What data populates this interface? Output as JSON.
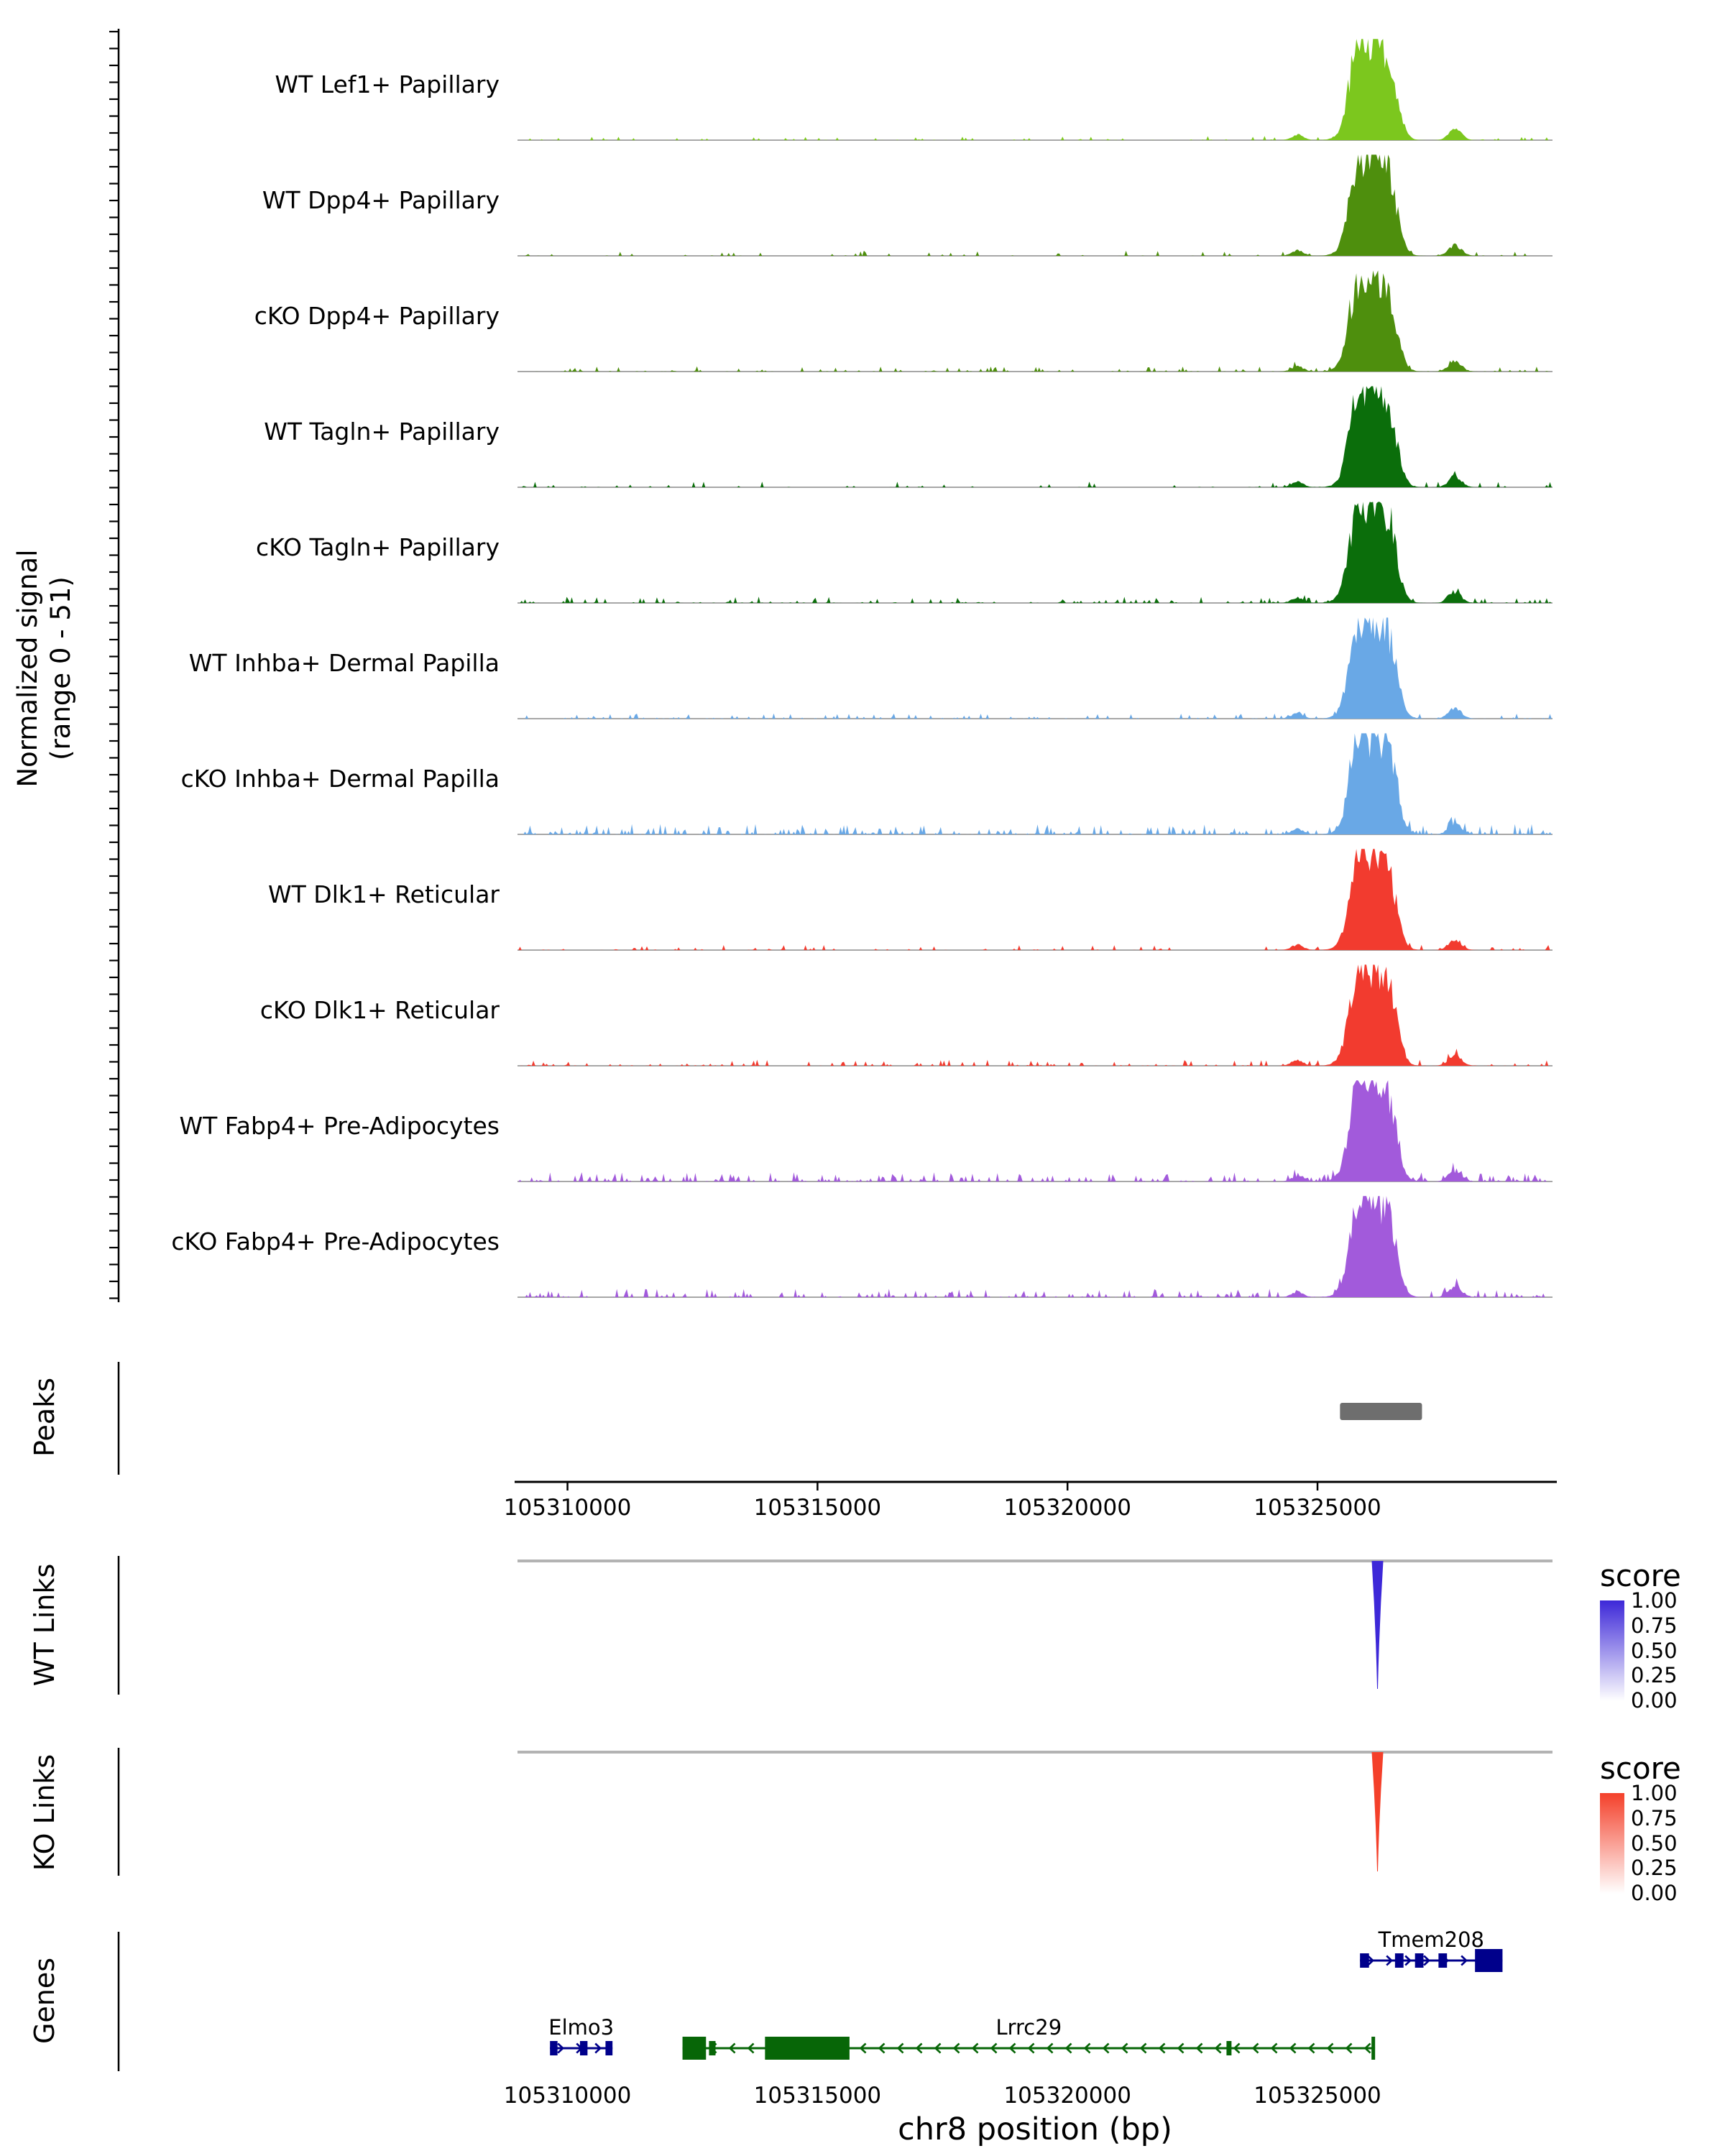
{
  "y_axis": {
    "label_line1": "Normalized signal",
    "label_line2": "(range 0 - 51)"
  },
  "sections": {
    "peaks_label": "Peaks",
    "wt_links_label": "WT Links",
    "ko_links_label": "KO Links",
    "genes_label": "Genes"
  },
  "x_axis": {
    "label": "chr8 position (bp)",
    "ticks": [
      105310000,
      105315000,
      105320000,
      105325000
    ],
    "tick_labels": [
      "105310000",
      "105315000",
      "105320000",
      "105325000"
    ]
  },
  "score_legend": {
    "title": "score",
    "tick_labels": [
      "1.00",
      "0.75",
      "0.50",
      "0.25",
      "0.00"
    ],
    "wt_color": "#3D28D8",
    "ko_color": "#F4402A"
  },
  "chart_data": {
    "type": "area",
    "description": "Genome coverage (accessibility) tracks with peaks, co-accessibility links and gene models at the Lrrc29/Tmem208 locus",
    "window": {
      "chrom": "chr8",
      "start": 105309000,
      "end": 105329700
    },
    "signal_range": [
      0,
      51
    ],
    "peaks_color": "#6E6E6E",
    "peak_profile": [
      {
        "center": 105326050,
        "sigma": 280,
        "height": 0.85
      },
      {
        "center": 105326450,
        "sigma": 160,
        "height": 0.45
      },
      {
        "center": 105325750,
        "sigma": 140,
        "height": 0.35
      },
      {
        "center": 105327750,
        "sigma": 130,
        "height": 0.1
      },
      {
        "center": 105324600,
        "sigma": 120,
        "height": 0.05
      }
    ],
    "tracks": [
      {
        "label": "WT Lef1+ Papillary",
        "color": "#7CC71E",
        "seed": 11,
        "noise_density": 0.1,
        "noise_amp": 0.04,
        "peak_height": 1.0
      },
      {
        "label": "WT Dpp4+ Papillary",
        "color": "#4E8F0D",
        "seed": 22,
        "noise_density": 0.12,
        "noise_amp": 0.05,
        "peak_height": 1.0
      },
      {
        "label": "cKO Dpp4+ Papillary",
        "color": "#4E8F0D",
        "seed": 33,
        "noise_density": 0.22,
        "noise_amp": 0.05,
        "peak_height": 0.95
      },
      {
        "label": "WT Tagln+ Papillary",
        "color": "#0B6E0B",
        "seed": 44,
        "noise_density": 0.12,
        "noise_amp": 0.06,
        "peak_height": 1.0
      },
      {
        "label": "cKO Tagln+ Papillary",
        "color": "#0B6E0B",
        "seed": 55,
        "noise_density": 0.3,
        "noise_amp": 0.06,
        "peak_height": 1.0
      },
      {
        "label": "WT Inhba+ Dermal Papilla",
        "color": "#69A8E6",
        "seed": 66,
        "noise_density": 0.22,
        "noise_amp": 0.05,
        "peak_height": 1.0
      },
      {
        "label": "cKO Inhba+ Dermal Papilla",
        "color": "#69A8E6",
        "seed": 77,
        "noise_density": 0.45,
        "noise_amp": 0.1,
        "peak_height": 1.0
      },
      {
        "label": "WT Dlk1+ Reticular",
        "color": "#F23B2F",
        "seed": 88,
        "noise_density": 0.15,
        "noise_amp": 0.05,
        "peak_height": 0.95
      },
      {
        "label": "cKO Dlk1+ Reticular",
        "color": "#F23B2F",
        "seed": 99,
        "noise_density": 0.25,
        "noise_amp": 0.06,
        "peak_height": 1.0
      },
      {
        "label": "WT Fabp4+ Pre-Adipocytes",
        "color": "#A25ADB",
        "seed": 110,
        "noise_density": 0.4,
        "noise_amp": 0.09,
        "peak_height": 1.0
      },
      {
        "label": "cKO Fabp4+ Pre-Adipocytes",
        "color": "#A25ADB",
        "seed": 121,
        "noise_density": 0.32,
        "noise_amp": 0.08,
        "peak_height": 1.0
      }
    ],
    "peak_regions": [
      {
        "start": 105325450,
        "end": 105327090
      }
    ],
    "links": {
      "wt": [
        {
          "anchor": 105326200,
          "score": 1.0
        }
      ],
      "ko": [
        {
          "anchor": 105326200,
          "score": 1.0
        }
      ]
    },
    "genes": [
      {
        "name": "Tmem208",
        "color": "#00008B",
        "strand": "+",
        "start": 105325850,
        "end": 105328700,
        "row": 0,
        "exons": [
          {
            "start": 105325850,
            "end": 105326030,
            "tall": false
          },
          {
            "start": 105326550,
            "end": 105326720,
            "tall": false
          },
          {
            "start": 105326950,
            "end": 105327120,
            "tall": false
          },
          {
            "start": 105327420,
            "end": 105327590,
            "tall": false
          },
          {
            "start": 105328150,
            "end": 105328700,
            "tall": true
          }
        ]
      },
      {
        "name": "Elmo3",
        "color": "#00008B",
        "strand": "+",
        "start": 105309650,
        "end": 105310900,
        "row": 1,
        "exons": [
          {
            "start": 105309650,
            "end": 105309800,
            "tall": false
          },
          {
            "start": 105310250,
            "end": 105310400,
            "tall": false
          },
          {
            "start": 105310760,
            "end": 105310900,
            "tall": false
          }
        ]
      },
      {
        "name": "Lrrc29",
        "color": "#076607",
        "strand": "-",
        "start": 105312300,
        "end": 105326150,
        "row": 1,
        "exons": [
          {
            "start": 105312300,
            "end": 105312770,
            "tall": true
          },
          {
            "start": 105312830,
            "end": 105312960,
            "tall": false
          },
          {
            "start": 105313950,
            "end": 105315640,
            "tall": true
          },
          {
            "start": 105323180,
            "end": 105323280,
            "tall": false
          },
          {
            "start": 105326080,
            "end": 105326150,
            "tall": true
          }
        ]
      }
    ]
  }
}
